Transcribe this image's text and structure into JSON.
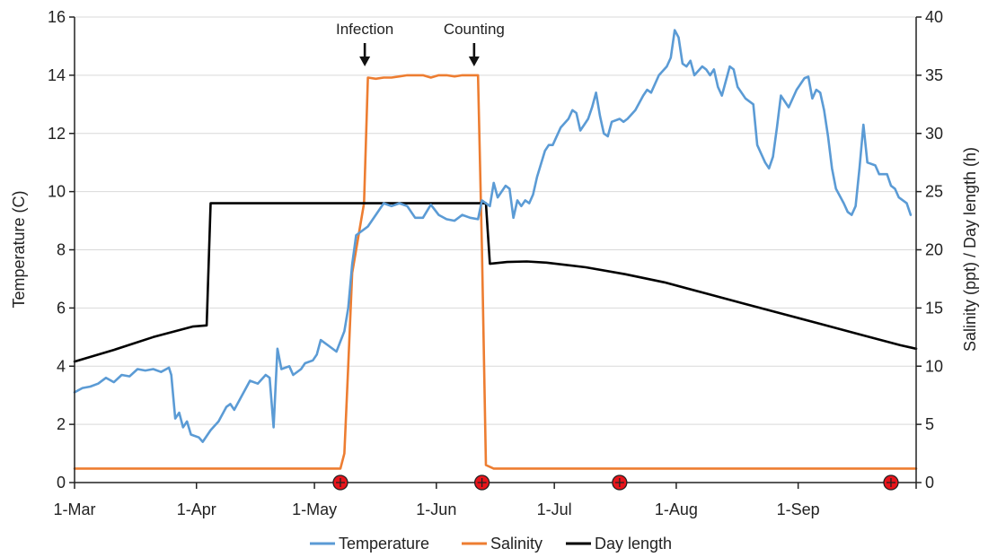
{
  "chart_data": {
    "type": "line",
    "title": "",
    "ylabel_left": "Temperature (C)",
    "ylabel_right": "Salinity (ppt) / Day length (h)",
    "xlabel": "",
    "x_day_offset": "days since 1-Mar",
    "xlim": [
      0,
      214
    ],
    "ylim_left": [
      0,
      16
    ],
    "ylim_right": [
      0,
      40
    ],
    "y_ticks_left": [
      "0",
      "2",
      "4",
      "6",
      "8",
      "10",
      "12",
      "14",
      "16"
    ],
    "y_ticks_right": [
      "0",
      "5",
      "10",
      "15",
      "20",
      "25",
      "30",
      "35",
      "40"
    ],
    "x_ticks": [
      {
        "label": "1-Mar",
        "day": 0
      },
      {
        "label": "1-Apr",
        "day": 31
      },
      {
        "label": "1-May",
        "day": 61
      },
      {
        "label": "1-Jun",
        "day": 92
      },
      {
        "label": "1-Jul",
        "day": 122
      },
      {
        "label": "1-Aug",
        "day": 153
      },
      {
        "label": "1-Sep",
        "day": 184
      }
    ],
    "grid": true,
    "legend_position": "bottom",
    "series": [
      {
        "name": "Temperature",
        "axis": "left",
        "color": "#5b9bd5",
        "points": [
          [
            0,
            3.1
          ],
          [
            2,
            3.25
          ],
          [
            4,
            3.3
          ],
          [
            6,
            3.4
          ],
          [
            8,
            3.6
          ],
          [
            10,
            3.45
          ],
          [
            12,
            3.7
          ],
          [
            14,
            3.65
          ],
          [
            16,
            3.9
          ],
          [
            18,
            3.85
          ],
          [
            20,
            3.9
          ],
          [
            22,
            3.8
          ],
          [
            24,
            3.95
          ],
          [
            24.6,
            3.7
          ],
          [
            25.6,
            2.2
          ],
          [
            26.6,
            2.4
          ],
          [
            27.6,
            1.9
          ],
          [
            28.6,
            2.1
          ],
          [
            29.6,
            1.65
          ],
          [
            31.6,
            1.55
          ],
          [
            32.6,
            1.4
          ],
          [
            34.6,
            1.8
          ],
          [
            36.6,
            2.1
          ],
          [
            38.6,
            2.6
          ],
          [
            39.6,
            2.7
          ],
          [
            40.6,
            2.5
          ],
          [
            42.6,
            3.0
          ],
          [
            44.6,
            3.5
          ],
          [
            46.6,
            3.4
          ],
          [
            48.6,
            3.7
          ],
          [
            49.6,
            3.6
          ],
          [
            50.6,
            1.9
          ],
          [
            51.6,
            4.6
          ],
          [
            52.6,
            3.9
          ],
          [
            54.6,
            4.0
          ],
          [
            55.6,
            3.7
          ],
          [
            57.6,
            3.9
          ],
          [
            58.6,
            4.1
          ],
          [
            60.6,
            4.2
          ],
          [
            61.6,
            4.4
          ],
          [
            62.6,
            4.9
          ],
          [
            64.6,
            4.7
          ],
          [
            66.6,
            4.5
          ],
          [
            68.6,
            5.2
          ],
          [
            69.6,
            6.0
          ],
          [
            70.6,
            7.5
          ],
          [
            71.6,
            8.5
          ],
          [
            72.6,
            8.6
          ],
          [
            74.6,
            8.8
          ],
          [
            76.6,
            9.2
          ],
          [
            78.6,
            9.6
          ],
          [
            80.6,
            9.5
          ],
          [
            82.6,
            9.6
          ],
          [
            84.6,
            9.5
          ],
          [
            86.6,
            9.1
          ],
          [
            88.6,
            9.1
          ],
          [
            90.6,
            9.55
          ],
          [
            92.6,
            9.2
          ],
          [
            94.6,
            9.05
          ],
          [
            96.6,
            9.0
          ],
          [
            98.6,
            9.2
          ],
          [
            100.6,
            9.1
          ],
          [
            102.6,
            9.05
          ],
          [
            103.6,
            9.7
          ],
          [
            105.6,
            9.5
          ],
          [
            106.6,
            10.3
          ],
          [
            107.6,
            9.8
          ],
          [
            109.6,
            10.2
          ],
          [
            110.6,
            10.1
          ],
          [
            111.6,
            9.1
          ],
          [
            112.6,
            9.7
          ],
          [
            113.6,
            9.5
          ],
          [
            114.6,
            9.7
          ],
          [
            115.6,
            9.6
          ],
          [
            116.6,
            9.9
          ],
          [
            117.6,
            10.5
          ],
          [
            119.6,
            11.4
          ],
          [
            120.6,
            11.6
          ],
          [
            121.6,
            11.6
          ],
          [
            123.6,
            12.2
          ],
          [
            125.6,
            12.5
          ],
          [
            126.6,
            12.8
          ],
          [
            127.6,
            12.7
          ],
          [
            128.6,
            12.1
          ],
          [
            129.6,
            12.3
          ],
          [
            130.6,
            12.5
          ],
          [
            131.6,
            12.9
          ],
          [
            132.6,
            13.4
          ],
          [
            133.6,
            12.6
          ],
          [
            134.6,
            12.0
          ],
          [
            135.6,
            11.9
          ],
          [
            136.6,
            12.4
          ],
          [
            138.6,
            12.5
          ],
          [
            139.6,
            12.4
          ],
          [
            140.6,
            12.5
          ],
          [
            142.6,
            12.8
          ],
          [
            144.6,
            13.3
          ],
          [
            145.6,
            13.5
          ],
          [
            146.6,
            13.4
          ],
          [
            148.6,
            14.0
          ],
          [
            150.6,
            14.3
          ],
          [
            151.6,
            14.6
          ],
          [
            152.6,
            15.55
          ],
          [
            153.6,
            15.3
          ],
          [
            154.6,
            14.4
          ],
          [
            155.6,
            14.3
          ],
          [
            156.6,
            14.5
          ],
          [
            157.6,
            14.0
          ],
          [
            159.6,
            14.3
          ],
          [
            160.6,
            14.2
          ],
          [
            161.6,
            14.0
          ],
          [
            162.6,
            14.2
          ],
          [
            163.6,
            13.6
          ],
          [
            164.6,
            13.3
          ],
          [
            165.6,
            13.8
          ],
          [
            166.6,
            14.3
          ],
          [
            167.6,
            14.2
          ],
          [
            168.6,
            13.6
          ],
          [
            170.6,
            13.2
          ],
          [
            172.6,
            13.0
          ],
          [
            173.6,
            11.6
          ],
          [
            174.6,
            11.3
          ],
          [
            175.6,
            11.0
          ],
          [
            176.6,
            10.8
          ],
          [
            177.6,
            11.2
          ],
          [
            178.6,
            12.2
          ],
          [
            179.6,
            13.3
          ],
          [
            181.6,
            12.9
          ],
          [
            183.6,
            13.5
          ],
          [
            185.6,
            13.9
          ],
          [
            186.6,
            13.95
          ],
          [
            187.6,
            13.2
          ],
          [
            188.6,
            13.5
          ],
          [
            189.6,
            13.4
          ],
          [
            190.6,
            12.8
          ],
          [
            191.6,
            11.9
          ],
          [
            192.6,
            10.8
          ],
          [
            193.6,
            10.1
          ],
          [
            195.6,
            9.6
          ],
          [
            196.6,
            9.3
          ],
          [
            197.6,
            9.2
          ],
          [
            198.6,
            9.5
          ],
          [
            199.6,
            10.8
          ],
          [
            200.6,
            12.3
          ],
          [
            201.6,
            11.0
          ],
          [
            203.6,
            10.9
          ],
          [
            204.6,
            10.6
          ],
          [
            206.6,
            10.6
          ],
          [
            207.6,
            10.2
          ],
          [
            208.6,
            10.1
          ],
          [
            209.6,
            9.8
          ],
          [
            211.6,
            9.6
          ],
          [
            212.6,
            9.2
          ]
        ]
      },
      {
        "name": "Salinity",
        "axis": "right",
        "color": "#ed7d31",
        "points": [
          [
            0,
            1.2
          ],
          [
            67.6,
            1.2
          ],
          [
            68.6,
            2.5
          ],
          [
            69.6,
            10
          ],
          [
            70.6,
            18
          ],
          [
            71.6,
            20
          ],
          [
            72.6,
            22
          ],
          [
            73.6,
            24
          ],
          [
            74.6,
            34.8
          ],
          [
            76.6,
            34.7
          ],
          [
            78.6,
            34.8
          ],
          [
            80.6,
            34.8
          ],
          [
            82.6,
            34.9
          ],
          [
            84.6,
            35.0
          ],
          [
            86.6,
            35.0
          ],
          [
            88.6,
            35.0
          ],
          [
            90.6,
            34.8
          ],
          [
            92.6,
            35.0
          ],
          [
            94.6,
            35.0
          ],
          [
            96.6,
            34.9
          ],
          [
            98.6,
            35.0
          ],
          [
            100.6,
            35.0
          ],
          [
            102.6,
            35.0
          ],
          [
            103.6,
            20
          ],
          [
            104.6,
            1.5
          ],
          [
            106.6,
            1.2
          ],
          [
            214,
            1.2
          ]
        ]
      },
      {
        "name": "Day length",
        "axis": "right",
        "color": "#000000",
        "points": [
          [
            0,
            10.4
          ],
          [
            10,
            11.4
          ],
          [
            20,
            12.5
          ],
          [
            30,
            13.4
          ],
          [
            33.6,
            13.5
          ],
          [
            34.6,
            24
          ],
          [
            104.6,
            24
          ],
          [
            105.6,
            18.8
          ],
          [
            110,
            18.95
          ],
          [
            115,
            19.0
          ],
          [
            120,
            18.9
          ],
          [
            130,
            18.5
          ],
          [
            140,
            17.9
          ],
          [
            150,
            17.2
          ],
          [
            160,
            16.3
          ],
          [
            170,
            15.4
          ],
          [
            180,
            14.5
          ],
          [
            190,
            13.6
          ],
          [
            200,
            12.7
          ],
          [
            210,
            11.8
          ],
          [
            214,
            11.5
          ]
        ]
      }
    ],
    "annotations": [
      {
        "text": "Infection",
        "day": 73.8
      },
      {
        "text": "Counting",
        "day": 101.6
      }
    ],
    "markers": [
      {
        "day": 67.6
      },
      {
        "day": 103.6
      },
      {
        "day": 138.6
      },
      {
        "day": 207.6
      }
    ]
  }
}
